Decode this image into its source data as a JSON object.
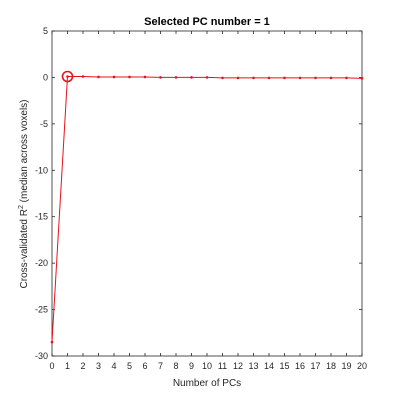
{
  "chart_data": {
    "type": "line",
    "title": "Selected PC number = 1",
    "xlabel": "Number of PCs",
    "ylabel_main": "Cross-validated R",
    "ylabel_sup": "2",
    "ylabel_rest": " (median across voxels)",
    "xlim": [
      0,
      20
    ],
    "ylim": [
      -30,
      5
    ],
    "xticks": [
      "0",
      "1",
      "2",
      "3",
      "4",
      "5",
      "6",
      "7",
      "8",
      "9",
      "10",
      "11",
      "12",
      "13",
      "14",
      "15",
      "16",
      "17",
      "18",
      "19",
      "20"
    ],
    "yticks": [
      "5",
      "0",
      "-5",
      "-10",
      "-15",
      "-20",
      "-25",
      "-30"
    ],
    "grid": false,
    "series": [
      {
        "color": "#e8121b",
        "x": [
          0,
          1,
          2,
          3,
          4,
          5,
          6,
          7,
          8,
          9,
          10,
          11,
          12,
          13,
          14,
          15,
          16,
          17,
          18,
          19,
          20
        ],
        "y": [
          -28.5,
          0.1,
          0.1,
          0.05,
          0.05,
          0.05,
          0.05,
          0.0,
          0.0,
          0.0,
          0.0,
          -0.05,
          -0.05,
          -0.05,
          -0.05,
          -0.05,
          -0.05,
          -0.05,
          -0.05,
          -0.05,
          -0.1
        ]
      }
    ],
    "selected": {
      "x": 1,
      "y": 0.1
    }
  }
}
